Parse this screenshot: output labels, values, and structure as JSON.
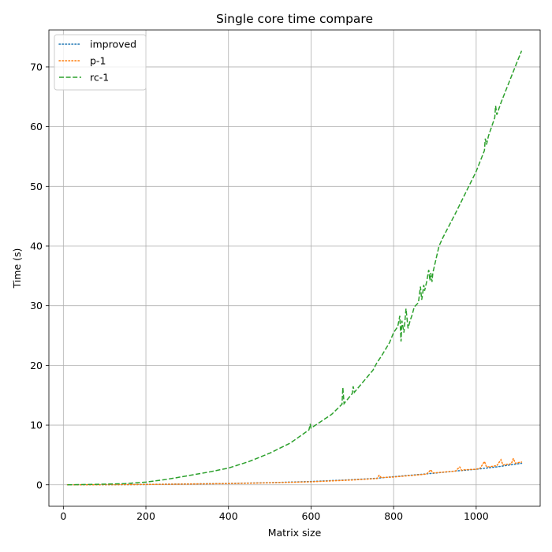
{
  "chart_data": {
    "type": "line",
    "title": "Single core time compare",
    "xlabel": "Matrix size",
    "ylabel": "Time (s)",
    "xlim": [
      -35,
      1155
    ],
    "ylim": [
      -3.6,
      76.2
    ],
    "xticks": [
      0,
      200,
      400,
      600,
      800,
      1000
    ],
    "yticks": [
      0,
      10,
      20,
      30,
      40,
      50,
      60,
      70
    ],
    "grid": true,
    "legend_position": "top-left",
    "series": [
      {
        "name": "improved",
        "style": "dotted",
        "color": "#1f77b4",
        "x": [
          10,
          100,
          200,
          300,
          400,
          500,
          600,
          700,
          760,
          800,
          850,
          900,
          950,
          1000,
          1050,
          1100,
          1110
        ],
        "y": [
          0.0,
          0.01,
          0.06,
          0.13,
          0.22,
          0.35,
          0.55,
          0.85,
          1.1,
          1.35,
          1.65,
          1.95,
          2.3,
          2.6,
          3.0,
          3.5,
          3.6
        ]
      },
      {
        "name": "p-1",
        "style": "dotted",
        "color": "#ff7f0e",
        "x": [
          10,
          100,
          200,
          300,
          400,
          500,
          600,
          700,
          760,
          765,
          770,
          800,
          850,
          880,
          890,
          895,
          900,
          950,
          960,
          965,
          970,
          1000,
          1010,
          1020,
          1025,
          1030,
          1050,
          1060,
          1065,
          1070,
          1085,
          1090,
          1095,
          1100,
          1110
        ],
        "y": [
          0.0,
          0.01,
          0.05,
          0.12,
          0.2,
          0.33,
          0.5,
          0.8,
          1.05,
          1.6,
          1.2,
          1.3,
          1.6,
          1.8,
          2.5,
          2.0,
          2.0,
          2.3,
          3.0,
          2.4,
          2.5,
          2.6,
          2.8,
          3.9,
          3.0,
          3.0,
          3.2,
          4.2,
          3.3,
          3.4,
          3.5,
          4.4,
          3.6,
          3.7,
          3.8
        ]
      },
      {
        "name": "rc-1",
        "style": "dashed",
        "color": "#2ca02c",
        "x": [
          10,
          100,
          150,
          200,
          250,
          300,
          350,
          400,
          450,
          500,
          550,
          595,
          598,
          600,
          650,
          675,
          677,
          680,
          700,
          702,
          705,
          750,
          760,
          770,
          790,
          800,
          810,
          815,
          818,
          820,
          825,
          830,
          835,
          840,
          845,
          850,
          860,
          865,
          868,
          870,
          873,
          875,
          880,
          885,
          888,
          890,
          893,
          895,
          900,
          910,
          920,
          950,
          1000,
          1020,
          1022,
          1025,
          1030,
          1045,
          1047,
          1050,
          1060,
          1080,
          1100,
          1110
        ],
        "y": [
          0.0,
          0.1,
          0.2,
          0.45,
          0.9,
          1.5,
          2.1,
          2.8,
          3.9,
          5.3,
          7.0,
          9.2,
          10.2,
          9.5,
          11.8,
          13.5,
          16.3,
          13.6,
          15.3,
          16.5,
          15.5,
          19.2,
          20.5,
          21.5,
          23.8,
          25.5,
          26.5,
          28.3,
          24.0,
          27.5,
          25.5,
          29.5,
          26.2,
          27.5,
          28.5,
          29.8,
          30.5,
          33.2,
          31.0,
          31.8,
          33.5,
          32.5,
          34.0,
          36.0,
          34.2,
          35.5,
          34.0,
          35.5,
          37.0,
          40.0,
          41.5,
          45.5,
          52.5,
          56.0,
          58.0,
          57.0,
          58.5,
          61.5,
          63.5,
          62.0,
          64.0,
          67.5,
          71.0,
          72.7
        ]
      }
    ]
  }
}
